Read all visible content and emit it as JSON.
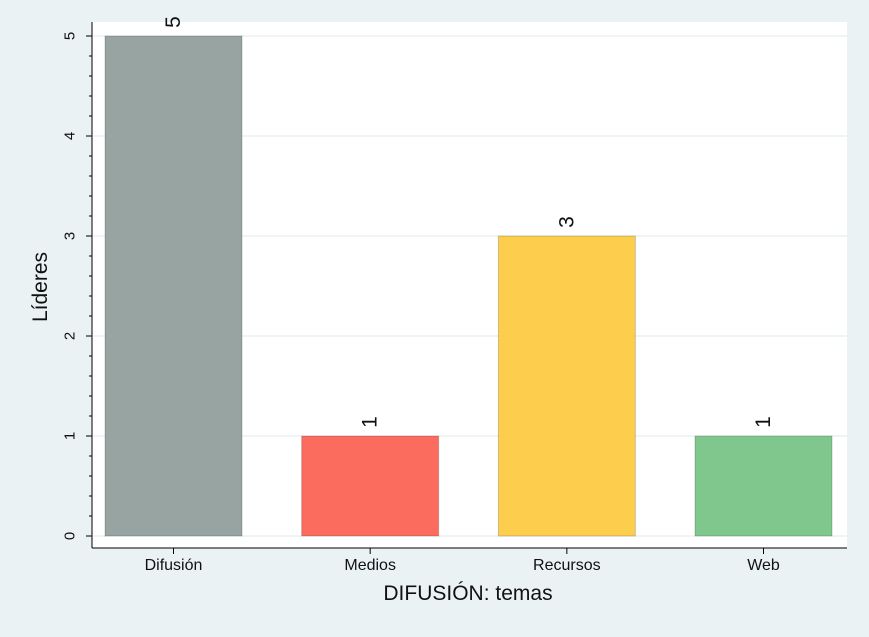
{
  "chart_data": {
    "type": "bar",
    "title": "",
    "xlabel": "DIFUSIÓN: temas",
    "ylabel": "Líderes",
    "categories": [
      "Difusión",
      "Medios",
      "Recursos",
      "Web"
    ],
    "values": [
      5,
      1,
      3,
      1
    ],
    "data_labels": [
      "5",
      "1",
      "3",
      "1"
    ],
    "bar_colors": [
      "#98a4a2",
      "#fc6c5e",
      "#fdcd4e",
      "#7fc78d"
    ],
    "yticks": [
      "0",
      "1",
      "2",
      "3",
      "4",
      "5"
    ],
    "ylim": [
      0,
      5
    ],
    "grid": true,
    "legend": "none"
  },
  "colors": {
    "page_background": "#eaf2f3",
    "plot_background": "#ffffff",
    "grid": "#eaf2f3",
    "axis": "#000000"
  }
}
